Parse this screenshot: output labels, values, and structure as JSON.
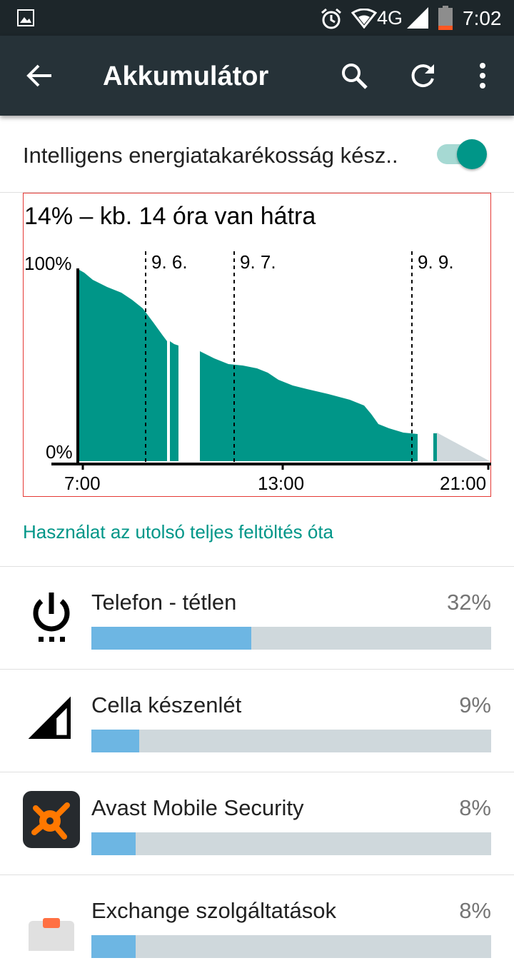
{
  "status_bar": {
    "network": "4G",
    "time": "7:02",
    "icons": [
      "image-icon",
      "alarm-icon",
      "wifi-icon",
      "signal-icon",
      "battery-icon"
    ]
  },
  "app_bar": {
    "title": "Akkumulátor",
    "icons": [
      "back-arrow-icon",
      "search-icon",
      "refresh-icon",
      "more-vert-icon"
    ]
  },
  "toggle": {
    "label": "Intelligens energiatakarékosság kész..",
    "checked": true
  },
  "chart_data": {
    "type": "area",
    "title": "14% – kb. 14 óra van hátra",
    "ylabels": [
      "100%",
      "0%"
    ],
    "ylim": [
      0,
      100
    ],
    "xlabels": [
      "7:00",
      "13:00",
      "21:00"
    ],
    "date_markers": [
      "9. 6.",
      "9. 7.",
      "9. 9."
    ],
    "fill_color": "#009688",
    "prediction_color": "#cfd8dc",
    "current_level": 14
  },
  "section_title": "Használat az utolsó teljes feltöltés óta",
  "usage_items": [
    {
      "name": "Telefon - tétlen",
      "percent_label": "32%",
      "fraction": 0.4,
      "icon": "power-icon"
    },
    {
      "name": "Cella készenlét",
      "percent_label": "9%",
      "fraction": 0.12,
      "icon": "cell-signal-icon"
    },
    {
      "name": "Avast Mobile Security",
      "percent_label": "8%",
      "fraction": 0.11,
      "icon": "avast-app-icon"
    },
    {
      "name": "Exchange szolgáltatások",
      "percent_label": "8%",
      "fraction": 0.11,
      "icon": "exchange-app-icon"
    }
  ]
}
